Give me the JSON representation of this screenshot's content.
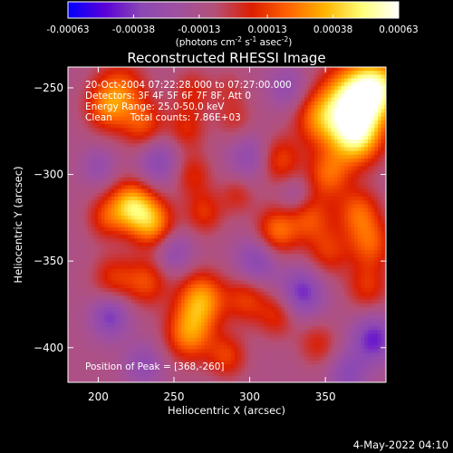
{
  "chart_data": {
    "type": "heatmap",
    "title": "Reconstructed RHESSI Image",
    "xlabel": "Heliocentric X (arcsec)",
    "ylabel": "Heliocentric Y (arcsec)",
    "xlim": [
      180,
      390
    ],
    "ylim": [
      -420,
      -238
    ],
    "x_ticks": [
      200,
      250,
      300,
      350
    ],
    "y_ticks": [
      -250,
      -300,
      -350,
      -400
    ],
    "colorbar": {
      "ticks": [
        "-0.00063",
        "-0.00038",
        "-0.00013",
        "0.00013",
        "0.00038",
        "0.00063"
      ],
      "range": [
        -0.00063,
        0.00063
      ],
      "units_prefix": "(photons cm",
      "units_exp1": "-2",
      "units_mid1": " s",
      "units_exp2": "-1",
      "units_mid2": " asec",
      "units_exp3": "-2",
      "units_suffix": ")"
    },
    "annotations": [
      "20-Oct-2004 07:22:28.000 to 07:27:00.000",
      "Detectors: 3F 4F 5F 6F 7F 8F, Att 0",
      "Energy Range: 25.0-50.0 keV",
      "Clean      Total counts: 7.86E+03"
    ],
    "peak_text": "Position of Peak = [368,-260]",
    "peak": [
      368,
      -260
    ],
    "grid": false,
    "blobs": [
      {
        "x": 368,
        "y": -258,
        "v": 0.00063,
        "r": 14
      },
      {
        "x": 385,
        "y": -250,
        "v": 0.0005,
        "r": 12
      },
      {
        "x": 370,
        "y": -278,
        "v": 0.00052,
        "r": 12
      },
      {
        "x": 345,
        "y": -268,
        "v": 0.0003,
        "r": 11
      },
      {
        "x": 320,
        "y": -292,
        "v": 0.00026,
        "r": 10
      },
      {
        "x": 352,
        "y": -300,
        "v": 0.0003,
        "r": 10
      },
      {
        "x": 215,
        "y": -252,
        "v": 0.0003,
        "r": 12
      },
      {
        "x": 205,
        "y": -262,
        "v": 0.00024,
        "r": 10
      },
      {
        "x": 230,
        "y": -272,
        "v": 0.00026,
        "r": 10
      },
      {
        "x": 262,
        "y": -252,
        "v": 0.00018,
        "r": 9
      },
      {
        "x": 258,
        "y": -274,
        "v": 0.0002,
        "r": 9
      },
      {
        "x": 290,
        "y": -268,
        "v": 0.00014,
        "r": 9
      },
      {
        "x": 286,
        "y": -250,
        "v": 0.0001,
        "r": 8
      },
      {
        "x": 222,
        "y": -318,
        "v": 0.00048,
        "r": 10
      },
      {
        "x": 236,
        "y": -328,
        "v": 0.0004,
        "r": 10
      },
      {
        "x": 205,
        "y": -325,
        "v": 0.00022,
        "r": 9
      },
      {
        "x": 262,
        "y": -300,
        "v": 0.0002,
        "r": 9
      },
      {
        "x": 270,
        "y": -322,
        "v": 0.00022,
        "r": 9
      },
      {
        "x": 292,
        "y": -312,
        "v": 0.00016,
        "r": 8
      },
      {
        "x": 318,
        "y": -333,
        "v": 0.00034,
        "r": 10
      },
      {
        "x": 340,
        "y": -325,
        "v": 0.00026,
        "r": 10
      },
      {
        "x": 372,
        "y": -322,
        "v": 0.0003,
        "r": 10
      },
      {
        "x": 380,
        "y": -340,
        "v": 0.00028,
        "r": 10
      },
      {
        "x": 352,
        "y": -345,
        "v": 0.00022,
        "r": 10
      },
      {
        "x": 378,
        "y": -365,
        "v": 0.00022,
        "r": 10
      },
      {
        "x": 268,
        "y": -372,
        "v": 0.00042,
        "r": 11
      },
      {
        "x": 260,
        "y": -392,
        "v": 0.00038,
        "r": 11
      },
      {
        "x": 232,
        "y": -362,
        "v": 0.00026,
        "r": 10
      },
      {
        "x": 210,
        "y": -360,
        "v": 0.00022,
        "r": 10
      },
      {
        "x": 298,
        "y": -372,
        "v": 0.00024,
        "r": 10
      },
      {
        "x": 318,
        "y": -382,
        "v": 0.0002,
        "r": 9
      },
      {
        "x": 285,
        "y": -405,
        "v": 0.00024,
        "r": 9
      },
      {
        "x": 345,
        "y": -398,
        "v": 0.00018,
        "r": 9
      },
      {
        "x": 208,
        "y": -382,
        "v": -0.00028,
        "r": 9
      },
      {
        "x": 240,
        "y": -292,
        "v": -0.00024,
        "r": 10
      },
      {
        "x": 300,
        "y": -290,
        "v": -0.0002,
        "r": 10
      },
      {
        "x": 305,
        "y": -350,
        "v": -0.00026,
        "r": 10
      },
      {
        "x": 250,
        "y": -345,
        "v": -0.0002,
        "r": 9
      },
      {
        "x": 335,
        "y": -368,
        "v": -0.0003,
        "r": 10
      },
      {
        "x": 382,
        "y": -395,
        "v": -0.00032,
        "r": 10
      },
      {
        "x": 365,
        "y": -415,
        "v": -0.00022,
        "r": 9
      },
      {
        "x": 230,
        "y": -410,
        "v": -0.0002,
        "r": 9
      },
      {
        "x": 325,
        "y": -250,
        "v": -0.00018,
        "r": 9
      },
      {
        "x": 200,
        "y": -295,
        "v": -0.00016,
        "r": 8
      },
      {
        "x": 330,
        "y": -312,
        "v": -0.00014,
        "r": 8
      }
    ],
    "baseline": -0.00012,
    "colors": {
      "background": "#000000",
      "text": "#ffffff",
      "colorbar_stops": [
        "#0000ff",
        "#5a00d8",
        "#8c48b4",
        "#a050a0",
        "#b45078",
        "#dc1e00",
        "#ff6400",
        "#ffb400",
        "#ffff78",
        "#ffffff"
      ]
    }
  },
  "footer": {
    "date": "4-May-2022 04:10"
  }
}
